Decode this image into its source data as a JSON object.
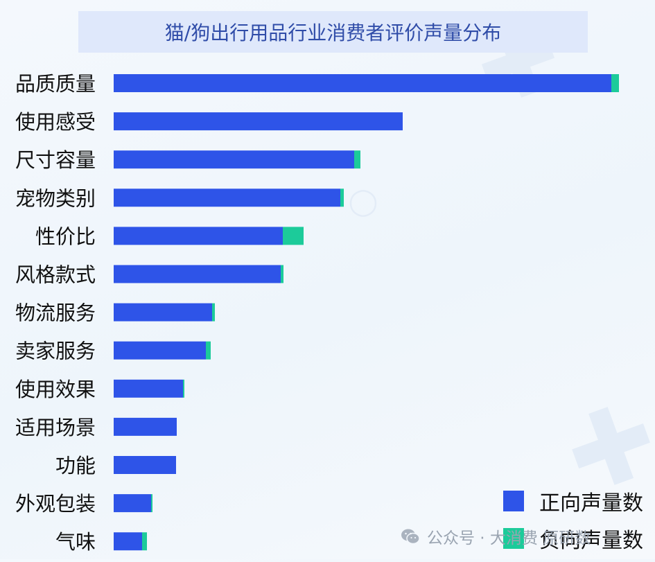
{
  "chart_data": {
    "type": "bar",
    "orientation": "horizontal",
    "stacked": true,
    "title": "猫/狗出行用品行业消费者评价声量分布",
    "categories": [
      "品质质量",
      "使用感受",
      "尺寸容量",
      "宠物类别",
      "性价比",
      "风格款式",
      "物流服务",
      "卖家服务",
      "使用效果",
      "适用场景",
      "功能",
      "外观包装",
      "气味"
    ],
    "series": [
      {
        "name": "正向声量数",
        "color": "#2e54e8",
        "values": [
          718,
          417,
          347,
          327,
          244,
          241,
          142,
          133,
          100,
          91,
          90,
          54,
          41
        ]
      },
      {
        "name": "负向声量数",
        "color": "#1ccb9a",
        "values": [
          11,
          0,
          9,
          5,
          30,
          4,
          4,
          7,
          2,
          0,
          0,
          2,
          7
        ]
      }
    ],
    "xlim": [
      0,
      740
    ],
    "grid": false,
    "legend_position": "bottom-right"
  },
  "watermark": {
    "text": "公众号 · 大消费 原研数",
    "icon": "wechat-icon"
  }
}
